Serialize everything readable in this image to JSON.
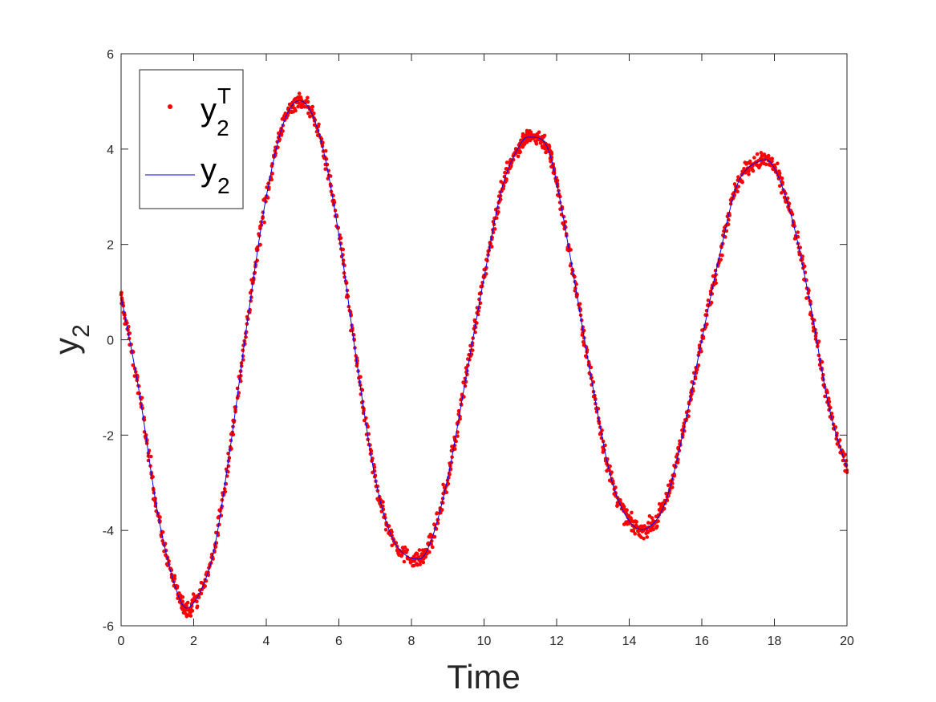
{
  "chart_data": {
    "type": "line",
    "xlabel": "Time",
    "ylabel": {
      "base": "y",
      "sub": "2"
    },
    "xlim": [
      0,
      20
    ],
    "ylim": [
      -6,
      6
    ],
    "xticks": [
      0,
      2,
      4,
      6,
      8,
      10,
      12,
      14,
      16,
      18,
      20
    ],
    "yticks": [
      -6,
      -4,
      -2,
      0,
      2,
      4,
      6
    ],
    "grid": false,
    "legend_position": "top-left",
    "series": [
      {
        "kind": "scatter",
        "legend": {
          "base": "y",
          "sub": "2",
          "sup": "T"
        },
        "color": "#ff0000",
        "noise_amplitude": 0.12
      },
      {
        "kind": "line",
        "legend": {
          "base": "y",
          "sub": "2"
        },
        "color": "#0000ff"
      }
    ],
    "curve_points": [
      [
        0.0,
        0.9
      ],
      [
        0.5,
        -1.1
      ],
      [
        1.0,
        -3.6
      ],
      [
        1.5,
        -5.2
      ],
      [
        1.9,
        -5.6
      ],
      [
        2.5,
        -4.6
      ],
      [
        3.0,
        -2.3
      ],
      [
        3.5,
        0.5
      ],
      [
        4.0,
        3.0
      ],
      [
        4.5,
        4.6
      ],
      [
        5.0,
        5.0
      ],
      [
        5.5,
        4.2
      ],
      [
        6.0,
        2.2
      ],
      [
        6.5,
        -0.5
      ],
      [
        7.0,
        -2.9
      ],
      [
        7.5,
        -4.2
      ],
      [
        8.1,
        -4.6
      ],
      [
        8.5,
        -4.3
      ],
      [
        9.0,
        -2.9
      ],
      [
        9.5,
        -0.8
      ],
      [
        10.0,
        1.3
      ],
      [
        10.5,
        3.2
      ],
      [
        11.0,
        4.1
      ],
      [
        11.3,
        4.25
      ],
      [
        11.7,
        4.1
      ],
      [
        12.0,
        3.3
      ],
      [
        12.5,
        1.2
      ],
      [
        13.0,
        -1.0
      ],
      [
        13.5,
        -2.9
      ],
      [
        14.0,
        -3.8
      ],
      [
        14.5,
        -3.95
      ],
      [
        15.0,
        -3.4
      ],
      [
        15.5,
        -1.9
      ],
      [
        16.0,
        0.0
      ],
      [
        16.5,
        1.8
      ],
      [
        17.0,
        3.3
      ],
      [
        17.6,
        3.75
      ],
      [
        18.0,
        3.6
      ],
      [
        18.5,
        2.5
      ],
      [
        19.0,
        0.7
      ],
      [
        19.5,
        -1.4
      ],
      [
        20.0,
        -2.7
      ]
    ]
  }
}
